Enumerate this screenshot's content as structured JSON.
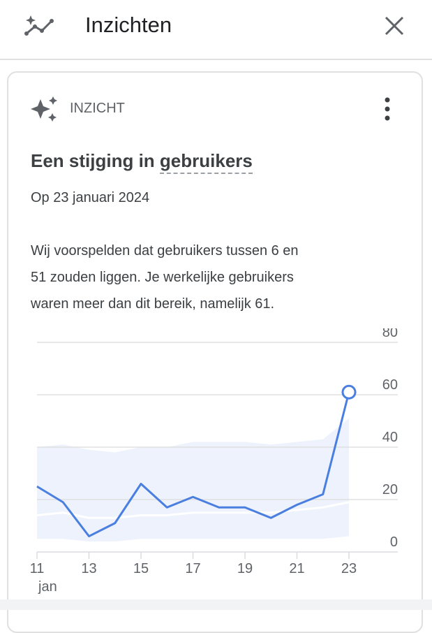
{
  "header": {
    "title": "Inzichten"
  },
  "card": {
    "label": "INZICHT",
    "title_start": "Een stijging in",
    "title_metric": "gebruikers",
    "date": "Op 23 januari 2024",
    "description_lines": [
      "Wij voorspelden dat gebruikers tussen 6 en",
      "51 zouden liggen. Je werkelijke gebruikers",
      "waren meer dan dit bereik, namelijk 61."
    ]
  },
  "chart_data": {
    "type": "line",
    "x": [
      11,
      12,
      13,
      14,
      15,
      16,
      17,
      18,
      19,
      20,
      21,
      22,
      23
    ],
    "series": [
      {
        "color": "#4a7fe0",
        "values": [
          25,
          19,
          6,
          11,
          26,
          17,
          21,
          17,
          17,
          13,
          18,
          22,
          61
        ]
      },
      {
        "color": "#ffffff",
        "values": [
          14,
          15,
          13,
          13,
          14,
          14,
          15,
          15,
          15,
          15,
          16,
          17,
          19
        ]
      }
    ],
    "band": {
      "color": "#edf2fd",
      "upper": [
        40,
        41,
        39,
        38,
        40,
        40,
        42,
        42,
        42,
        41,
        42,
        43,
        51
      ],
      "lower": [
        5,
        5,
        4,
        4,
        5,
        5,
        5,
        5,
        5,
        5,
        5,
        5,
        6
      ]
    },
    "xlim": [
      11,
      23
    ],
    "xticks": [
      11,
      13,
      15,
      17,
      19,
      21,
      23
    ],
    "x_month_label": "jan",
    "ylim": [
      0,
      80
    ],
    "yticks": [
      0,
      20,
      40,
      60,
      80
    ],
    "grid": true
  }
}
